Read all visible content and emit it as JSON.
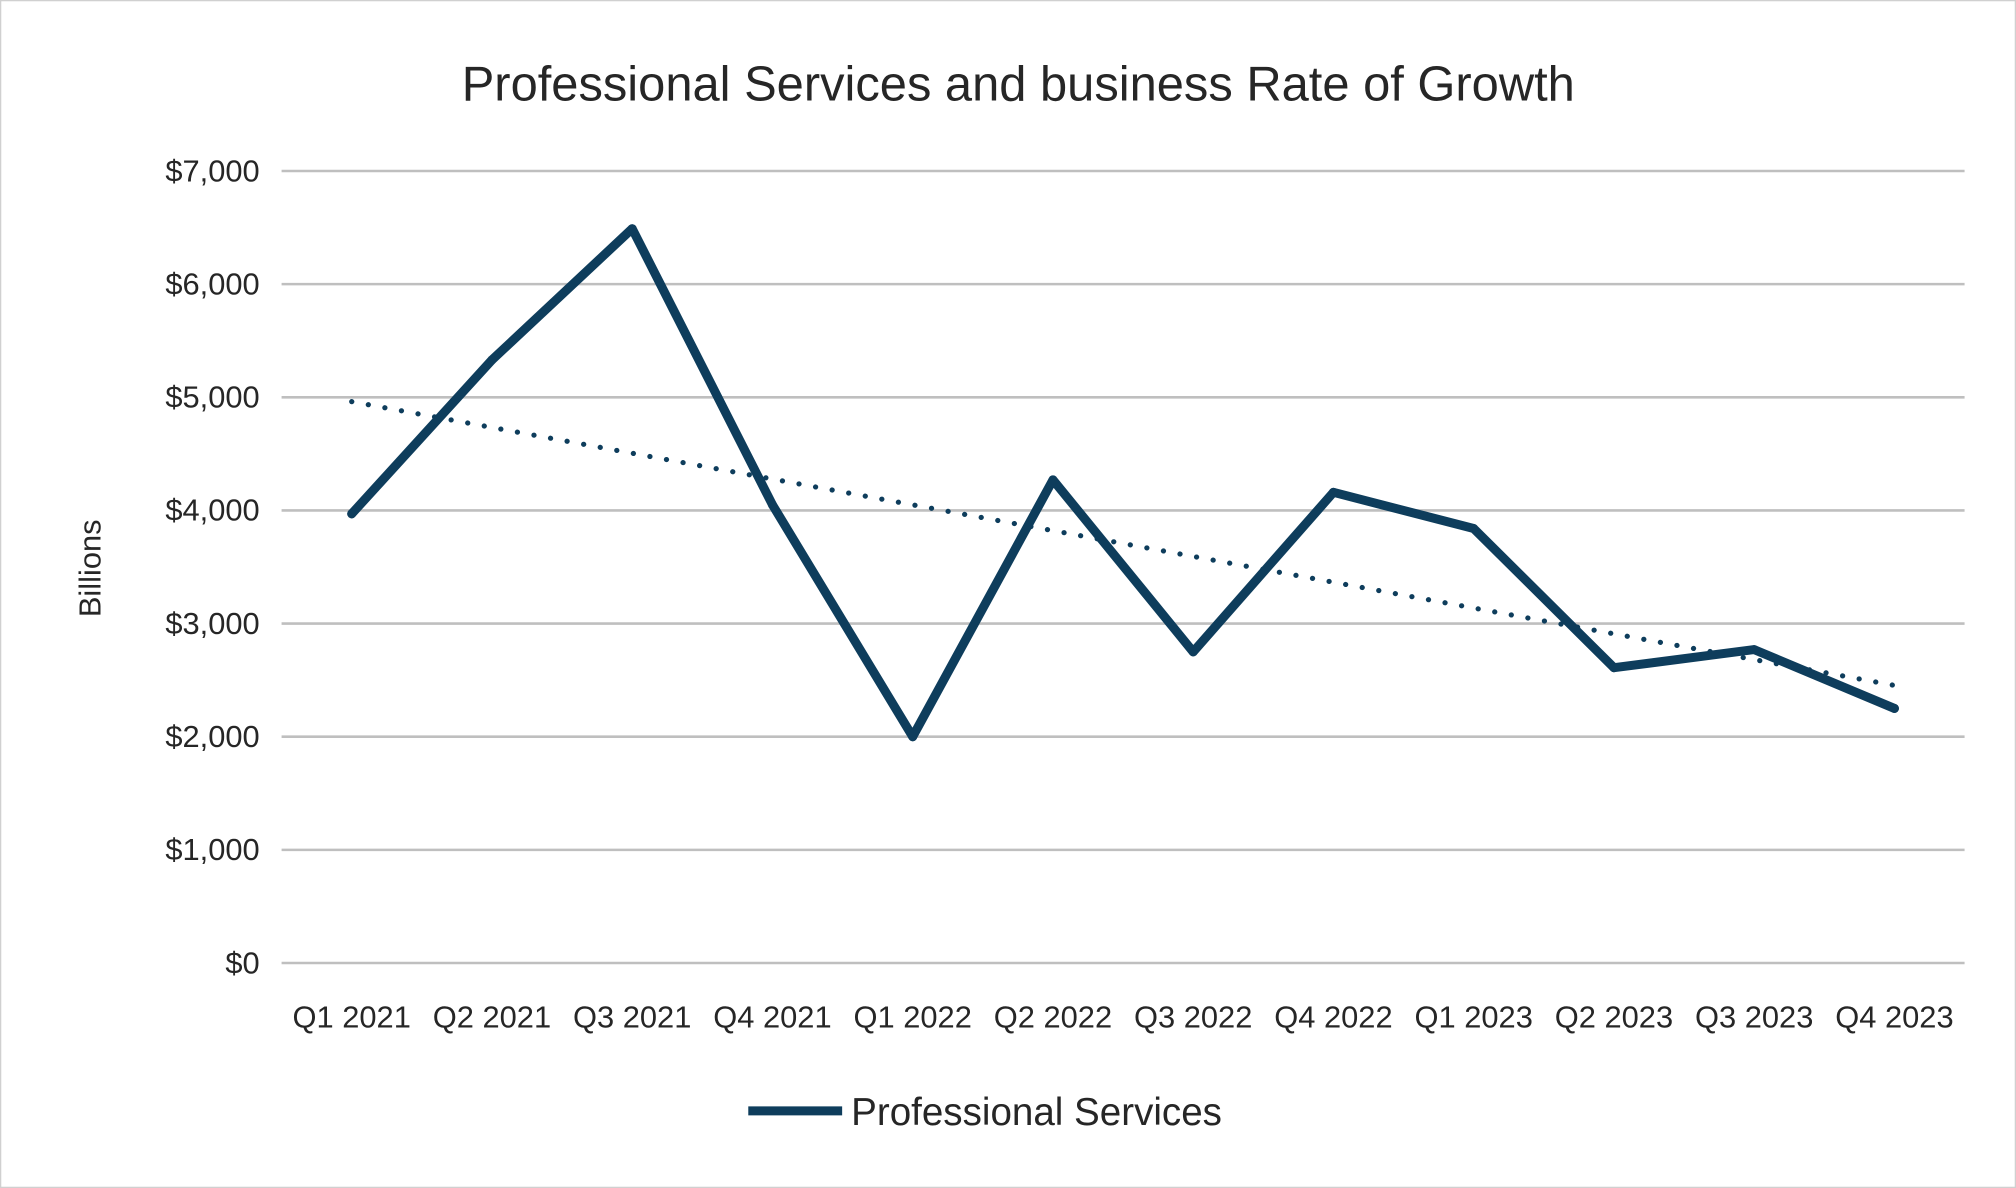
{
  "chart_data": {
    "type": "line",
    "title": "Professional Services and business Rate of Growth",
    "ylabel": "Billions",
    "xlabel": "",
    "ylim": [
      0,
      7000
    ],
    "yticks": [
      0,
      1000,
      2000,
      3000,
      4000,
      5000,
      6000,
      7000
    ],
    "ytick_labels": [
      "$0",
      "$1,000",
      "$2,000",
      "$3,000",
      "$4,000",
      "$5,000",
      "$6,000",
      "$7,000"
    ],
    "categories": [
      "Q1 2021",
      "Q2 2021",
      "Q3 2021",
      "Q4 2021",
      "Q1 2022",
      "Q2 2022",
      "Q3 2022",
      "Q4 2022",
      "Q1 2023",
      "Q2 2023",
      "Q3 2023",
      "Q4 2023"
    ],
    "series": [
      {
        "name": "Professional Services",
        "values": [
          3970,
          5330,
          6490,
          4050,
          2000,
          4270,
          2750,
          4160,
          3840,
          2610,
          2770,
          2250
        ],
        "color": "#0e3d5c"
      }
    ],
    "trendline": {
      "type": "linear",
      "style": "dotted",
      "color": "#0e3d5c"
    },
    "grid": true,
    "legend": "bottom"
  }
}
